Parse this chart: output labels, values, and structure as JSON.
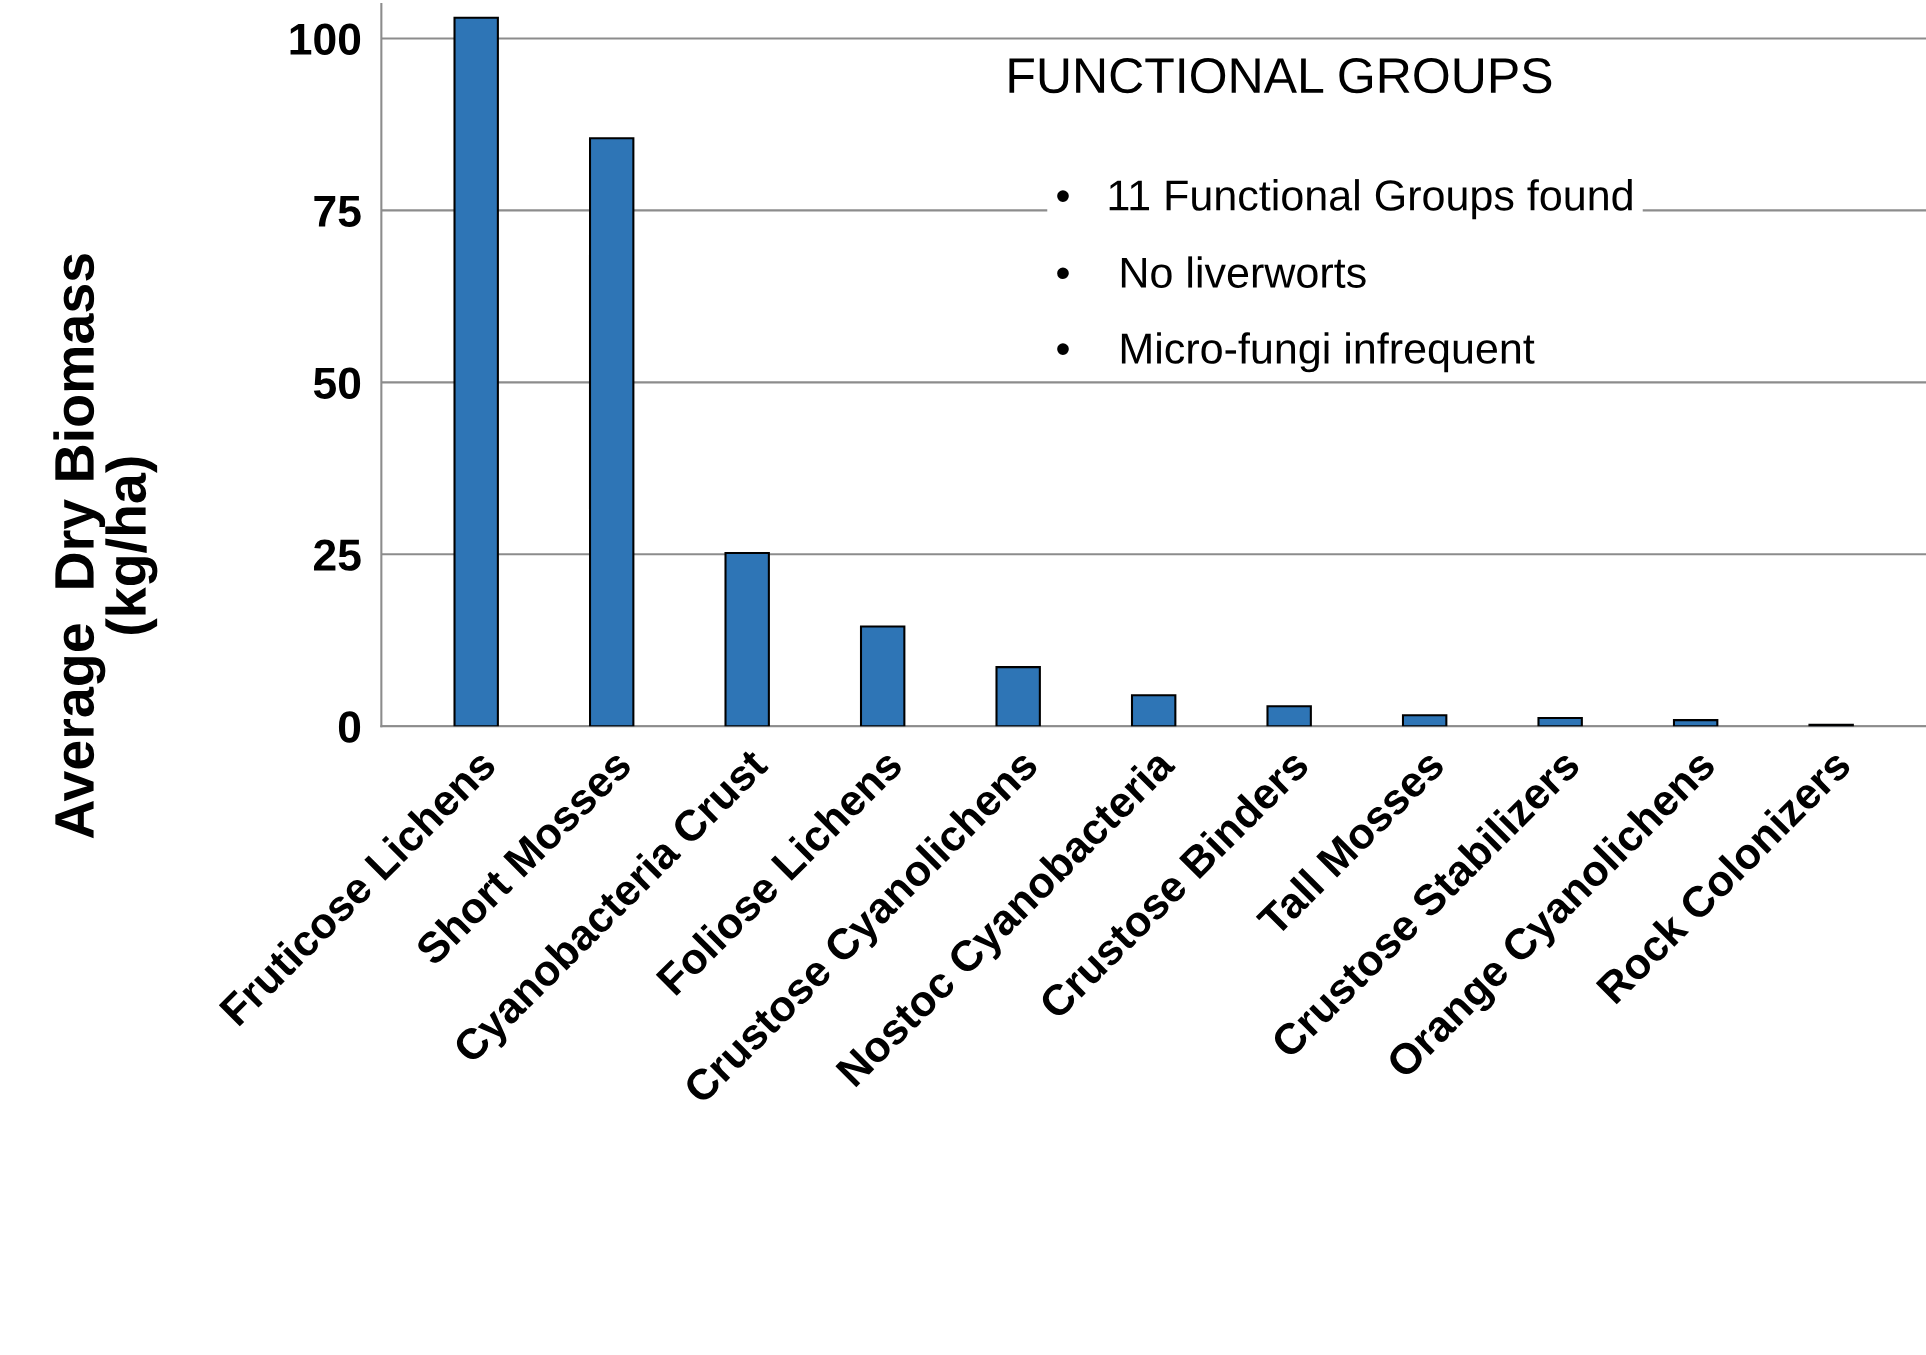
{
  "chart_data": {
    "type": "bar",
    "ylabel": "Average  Dry Biomass\n(kg/ha)",
    "categories": [
      "Fruticose Lichens",
      "Short Mosses",
      "Cyanobacteria Crust",
      "Foliose Lichens",
      "Crustose Cyanolichens",
      "Nostoc Cyanobacteria",
      "Crustose Binders",
      "Tall Mosses",
      "Crustose Stabilizers",
      "Orange Cyanolichens",
      "Rock Colonizers"
    ],
    "values": [
      103,
      85.5,
      25.2,
      14.5,
      8.6,
      4.5,
      2.9,
      1.6,
      1.2,
      0.9,
      0.2
    ],
    "color": "#2e75b6",
    "ylim": [
      0,
      105
    ],
    "yticks": [
      0,
      25,
      50,
      75,
      100
    ],
    "grid": "y",
    "annotations": [
      "FUNCTIONAL GROUPS",
      "•   11 Functional Groups found",
      "•    No liverworts",
      "•    Micro-fungi infrequent"
    ]
  }
}
